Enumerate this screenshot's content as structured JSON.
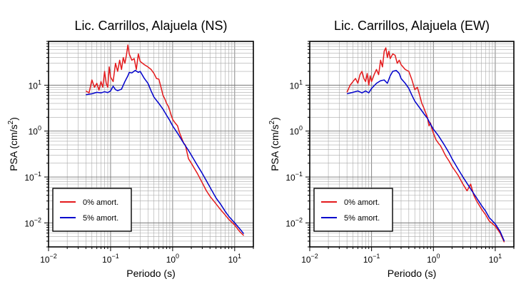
{
  "chart_data": [
    {
      "type": "line",
      "title": "Lic. Carrillos, Alajuela (NS)",
      "xlabel": "Periodo (s)",
      "ylabel_main": "PSA (cm/s",
      "ylabel_sup": "2",
      "ylabel_tail": ")",
      "x_scale": "log",
      "y_scale": "log",
      "xlim": [
        0.01,
        20
      ],
      "ylim": [
        0.003,
        90
      ],
      "grid": true,
      "legend_position": "bottom-left",
      "x_ticks": [
        {
          "value": 0.01,
          "base": "10",
          "exp": "−2"
        },
        {
          "value": 0.1,
          "base": "10",
          "exp": "−1"
        },
        {
          "value": 1,
          "base": "10",
          "exp": "0"
        },
        {
          "value": 10,
          "base": "10",
          "exp": "1"
        }
      ],
      "y_ticks": [
        {
          "value": 0.01,
          "base": "10",
          "exp": "−2"
        },
        {
          "value": 0.1,
          "base": "10",
          "exp": "−1"
        },
        {
          "value": 1,
          "base": "10",
          "exp": "0"
        },
        {
          "value": 10,
          "base": "10",
          "exp": "1"
        }
      ],
      "series": [
        {
          "name": "0% amort.",
          "color": "#e41a1c",
          "points": [
            [
              0.04,
              7.5
            ],
            [
              0.045,
              6.8
            ],
            [
              0.05,
              13
            ],
            [
              0.055,
              9
            ],
            [
              0.06,
              11
            ],
            [
              0.065,
              7.8
            ],
            [
              0.07,
              12
            ],
            [
              0.075,
              9
            ],
            [
              0.08,
              20
            ],
            [
              0.085,
              11
            ],
            [
              0.09,
              9
            ],
            [
              0.095,
              25
            ],
            [
              0.1,
              15
            ],
            [
              0.11,
              12
            ],
            [
              0.12,
              30
            ],
            [
              0.13,
              20
            ],
            [
              0.14,
              35
            ],
            [
              0.15,
              22
            ],
            [
              0.16,
              40
            ],
            [
              0.17,
              30
            ],
            [
              0.18,
              45
            ],
            [
              0.19,
              75
            ],
            [
              0.2,
              48
            ],
            [
              0.22,
              35
            ],
            [
              0.24,
              38
            ],
            [
              0.26,
              22
            ],
            [
              0.28,
              48
            ],
            [
              0.3,
              33
            ],
            [
              0.35,
              28
            ],
            [
              0.4,
              25
            ],
            [
              0.45,
              22
            ],
            [
              0.5,
              18
            ],
            [
              0.55,
              14
            ],
            [
              0.6,
              13.5
            ],
            [
              0.65,
              9
            ],
            [
              0.7,
              6
            ],
            [
              0.75,
              5
            ],
            [
              0.8,
              4
            ],
            [
              0.85,
              3.5
            ],
            [
              0.9,
              2.8
            ],
            [
              0.95,
              2.2
            ],
            [
              1.0,
              1.8
            ],
            [
              1.1,
              1.5
            ],
            [
              1.2,
              1.3
            ],
            [
              1.3,
              0.9
            ],
            [
              1.4,
              0.7
            ],
            [
              1.5,
              0.55
            ],
            [
              1.6,
              0.5
            ],
            [
              1.7,
              0.35
            ],
            [
              1.8,
              0.25
            ],
            [
              2.0,
              0.2
            ],
            [
              2.2,
              0.16
            ],
            [
              2.5,
              0.12
            ],
            [
              3.0,
              0.075
            ],
            [
              3.5,
              0.05
            ],
            [
              4.0,
              0.038
            ],
            [
              5.0,
              0.026
            ],
            [
              6.0,
              0.019
            ],
            [
              7.0,
              0.015
            ],
            [
              8.0,
              0.012
            ],
            [
              10.0,
              0.009
            ],
            [
              12.0,
              0.0065
            ],
            [
              14.0,
              0.0053
            ]
          ]
        },
        {
          "name": "5% amort.",
          "color": "#0000cc",
          "points": [
            [
              0.04,
              6.2
            ],
            [
              0.05,
              6.5
            ],
            [
              0.06,
              7
            ],
            [
              0.07,
              6.8
            ],
            [
              0.08,
              7.2
            ],
            [
              0.09,
              6.9
            ],
            [
              0.1,
              7.5
            ],
            [
              0.11,
              9.5
            ],
            [
              0.12,
              8
            ],
            [
              0.13,
              7.6
            ],
            [
              0.15,
              8.2
            ],
            [
              0.17,
              12
            ],
            [
              0.19,
              16
            ],
            [
              0.2,
              19
            ],
            [
              0.22,
              18.5
            ],
            [
              0.25,
              21
            ],
            [
              0.28,
              19
            ],
            [
              0.3,
              20
            ],
            [
              0.35,
              14
            ],
            [
              0.4,
              11
            ],
            [
              0.45,
              7.5
            ],
            [
              0.5,
              5.5
            ],
            [
              0.6,
              4
            ],
            [
              0.7,
              3
            ],
            [
              0.8,
              2.2
            ],
            [
              0.9,
              1.7
            ],
            [
              1.0,
              1.3
            ],
            [
              1.2,
              0.9
            ],
            [
              1.5,
              0.55
            ],
            [
              1.8,
              0.38
            ],
            [
              2.0,
              0.3
            ],
            [
              2.5,
              0.18
            ],
            [
              3.0,
              0.12
            ],
            [
              4.0,
              0.06
            ],
            [
              5.0,
              0.035
            ],
            [
              6.0,
              0.025
            ],
            [
              7.0,
              0.018
            ],
            [
              8.0,
              0.014
            ],
            [
              10.0,
              0.01
            ],
            [
              12.0,
              0.0075
            ],
            [
              14.0,
              0.0058
            ]
          ]
        }
      ]
    },
    {
      "type": "line",
      "title": "Lic. Carrillos, Alajuela (EW)",
      "xlabel": "Periodo (s)",
      "ylabel_main": "PSA (cm/s",
      "ylabel_sup": "2",
      "ylabel_tail": ")",
      "x_scale": "log",
      "y_scale": "log",
      "xlim": [
        0.01,
        20
      ],
      "ylim": [
        0.003,
        90
      ],
      "grid": true,
      "legend_position": "bottom-left",
      "x_ticks": [
        {
          "value": 0.01,
          "base": "10",
          "exp": "−2"
        },
        {
          "value": 0.1,
          "base": "10",
          "exp": "−1"
        },
        {
          "value": 1,
          "base": "10",
          "exp": "0"
        },
        {
          "value": 10,
          "base": "10",
          "exp": "1"
        }
      ],
      "y_ticks": [
        {
          "value": 0.01,
          "base": "10",
          "exp": "−2"
        },
        {
          "value": 0.1,
          "base": "10",
          "exp": "−1"
        },
        {
          "value": 1,
          "base": "10",
          "exp": "0"
        },
        {
          "value": 10,
          "base": "10",
          "exp": "1"
        }
      ],
      "series": [
        {
          "name": "0% amort.",
          "color": "#e41a1c",
          "points": [
            [
              0.04,
              7
            ],
            [
              0.045,
              10
            ],
            [
              0.05,
              12
            ],
            [
              0.055,
              14
            ],
            [
              0.06,
              11
            ],
            [
              0.065,
              17
            ],
            [
              0.07,
              20
            ],
            [
              0.075,
              14
            ],
            [
              0.08,
              12
            ],
            [
              0.085,
              18
            ],
            [
              0.09,
              10
            ],
            [
              0.095,
              16
            ],
            [
              0.1,
              12
            ],
            [
              0.11,
              17
            ],
            [
              0.12,
              22
            ],
            [
              0.13,
              17
            ],
            [
              0.14,
              35
            ],
            [
              0.15,
              25
            ],
            [
              0.16,
              55
            ],
            [
              0.17,
              65
            ],
            [
              0.18,
              40
            ],
            [
              0.19,
              55
            ],
            [
              0.2,
              38
            ],
            [
              0.22,
              48
            ],
            [
              0.24,
              45
            ],
            [
              0.26,
              30
            ],
            [
              0.28,
              35
            ],
            [
              0.3,
              28
            ],
            [
              0.35,
              22
            ],
            [
              0.4,
              20
            ],
            [
              0.45,
              13
            ],
            [
              0.5,
              8
            ],
            [
              0.55,
              9
            ],
            [
              0.6,
              6
            ],
            [
              0.65,
              4
            ],
            [
              0.7,
              3.2
            ],
            [
              0.75,
              2.5
            ],
            [
              0.8,
              2
            ],
            [
              0.85,
              1.3
            ],
            [
              0.9,
              1.5
            ],
            [
              0.95,
              1.1
            ],
            [
              1.0,
              0.9
            ],
            [
              1.1,
              0.65
            ],
            [
              1.2,
              0.55
            ],
            [
              1.3,
              0.48
            ],
            [
              1.4,
              0.4
            ],
            [
              1.5,
              0.33
            ],
            [
              1.6,
              0.28
            ],
            [
              1.8,
              0.22
            ],
            [
              2.0,
              0.17
            ],
            [
              2.5,
              0.11
            ],
            [
              3.0,
              0.07
            ],
            [
              3.5,
              0.05
            ],
            [
              4.0,
              0.07
            ],
            [
              4.5,
              0.04
            ],
            [
              5.0,
              0.03
            ],
            [
              6.0,
              0.02
            ],
            [
              7.0,
              0.015
            ],
            [
              8.0,
              0.011
            ],
            [
              10.0,
              0.0085
            ],
            [
              12.0,
              0.006
            ],
            [
              14.0,
              0.0038
            ]
          ]
        },
        {
          "name": "5% amort.",
          "color": "#0000cc",
          "points": [
            [
              0.04,
              6.5
            ],
            [
              0.05,
              7
            ],
            [
              0.06,
              7.5
            ],
            [
              0.07,
              6.8
            ],
            [
              0.08,
              7.5
            ],
            [
              0.09,
              6.8
            ],
            [
              0.1,
              8.5
            ],
            [
              0.12,
              11
            ],
            [
              0.14,
              12.5
            ],
            [
              0.16,
              13
            ],
            [
              0.18,
              11
            ],
            [
              0.2,
              16
            ],
            [
              0.22,
              20
            ],
            [
              0.25,
              21
            ],
            [
              0.28,
              18
            ],
            [
              0.3,
              14
            ],
            [
              0.35,
              11
            ],
            [
              0.4,
              8.5
            ],
            [
              0.45,
              6
            ],
            [
              0.5,
              4.5
            ],
            [
              0.6,
              3.2
            ],
            [
              0.7,
              2.4
            ],
            [
              0.8,
              1.9
            ],
            [
              0.9,
              1.4
            ],
            [
              1.0,
              1.1
            ],
            [
              1.2,
              0.8
            ],
            [
              1.5,
              0.5
            ],
            [
              1.8,
              0.33
            ],
            [
              2.0,
              0.25
            ],
            [
              2.5,
              0.15
            ],
            [
              3.0,
              0.1
            ],
            [
              4.0,
              0.055
            ],
            [
              5.0,
              0.035
            ],
            [
              6.0,
              0.024
            ],
            [
              7.0,
              0.018
            ],
            [
              8.0,
              0.013
            ],
            [
              10.0,
              0.0095
            ],
            [
              12.0,
              0.0065
            ],
            [
              14.0,
              0.004
            ]
          ]
        }
      ]
    }
  ]
}
